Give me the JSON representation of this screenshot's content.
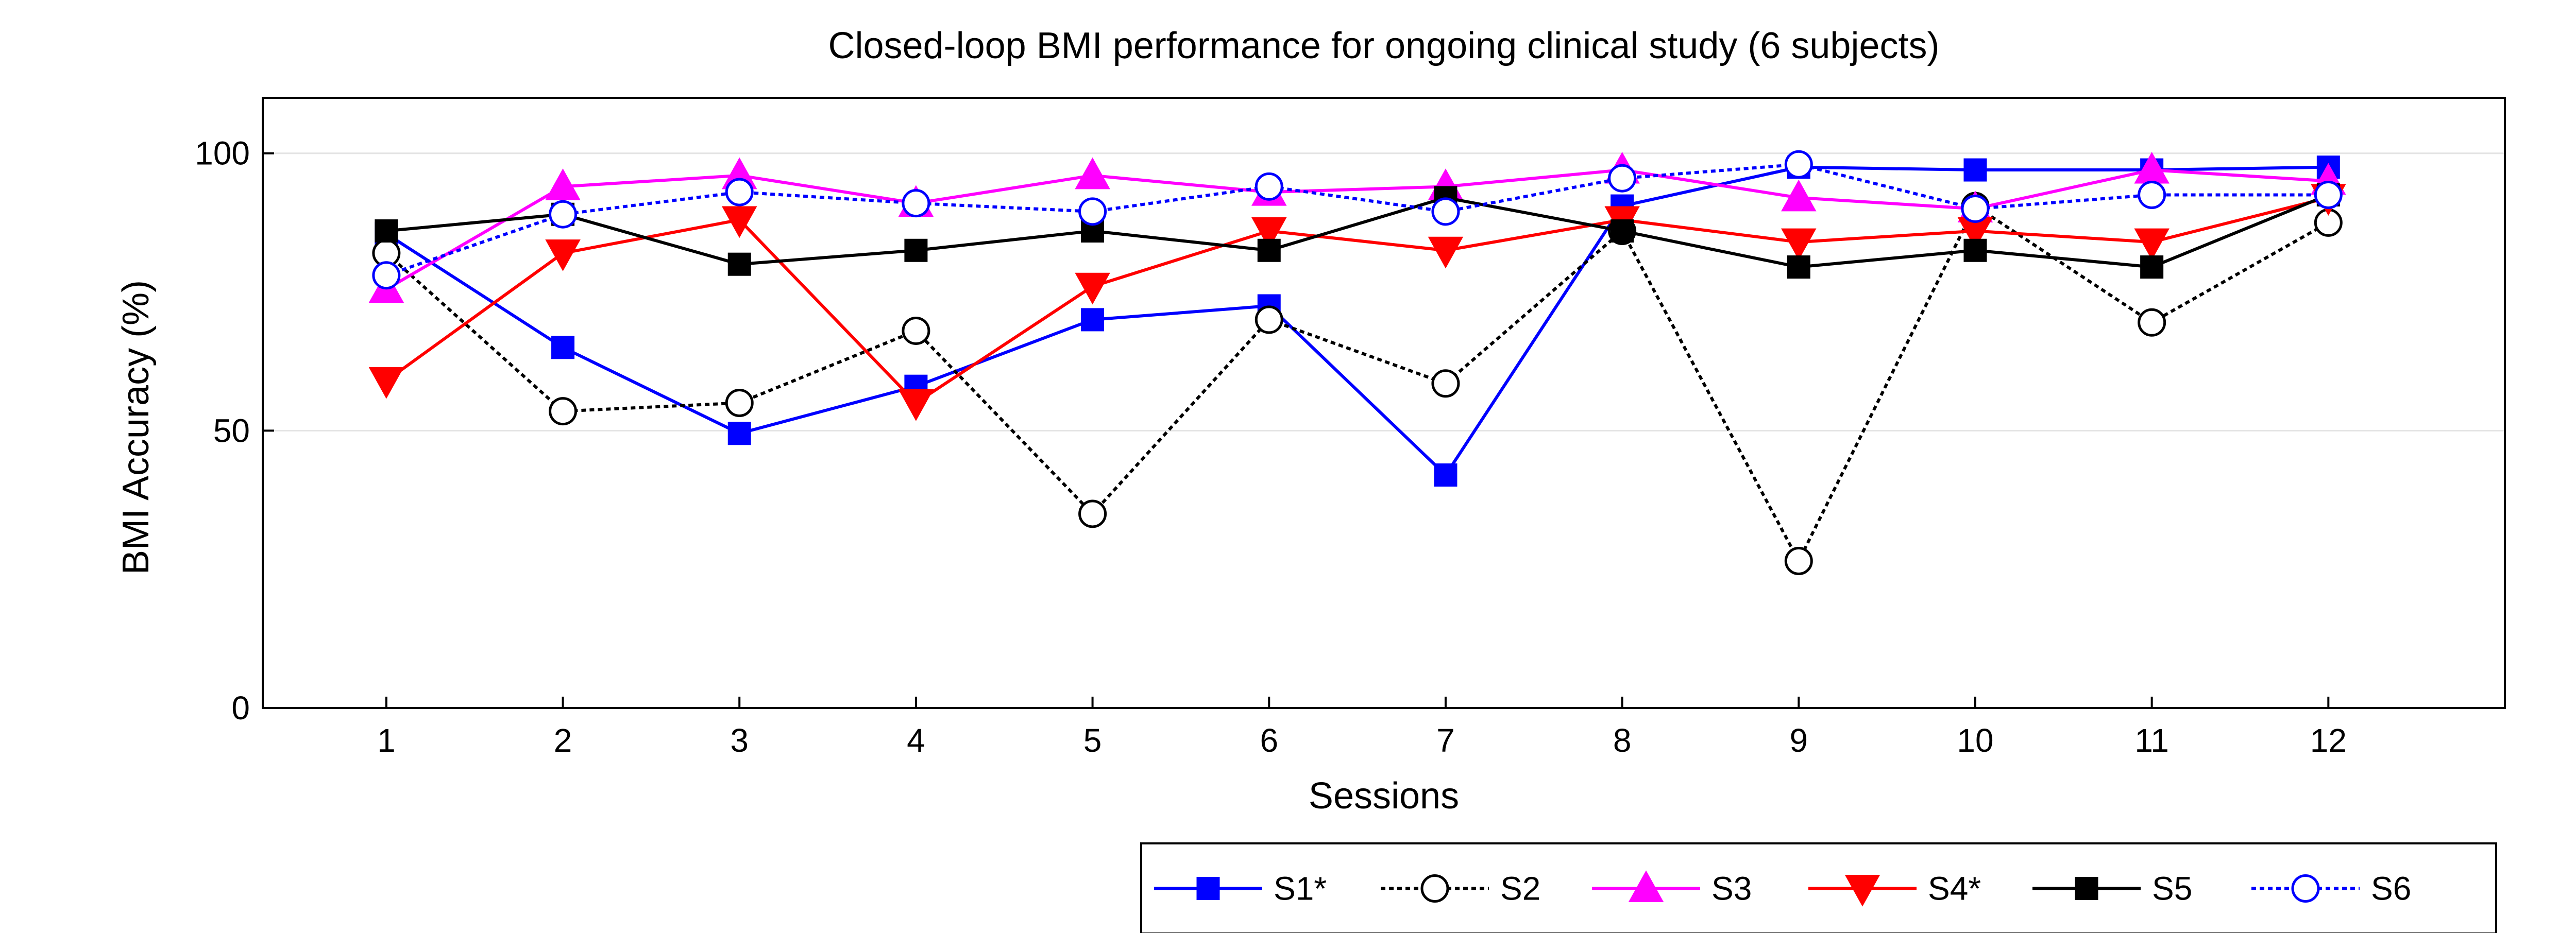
{
  "chart_data": {
    "type": "line",
    "title": "Closed-loop BMI performance for ongoing clinical study (6 subjects)",
    "xlabel": "Sessions",
    "ylabel": "BMI Accuracy (%)",
    "x": [
      1,
      2,
      3,
      4,
      5,
      6,
      7,
      8,
      9,
      10,
      11,
      12
    ],
    "xlim": [
      0.3,
      13.0
    ],
    "ylim": [
      0,
      110
    ],
    "yticks": [
      0,
      50,
      100
    ],
    "xticks": [
      1,
      2,
      3,
      4,
      5,
      6,
      7,
      8,
      9,
      10,
      11,
      12
    ],
    "grid": "horizontal",
    "legend_position": "bottom-right",
    "series": [
      {
        "name": "S1*",
        "color": "#0000ff",
        "dash": "solid",
        "marker": "square",
        "filled": true,
        "values": [
          85.5,
          65,
          49.5,
          58,
          70,
          72.5,
          42,
          90.5,
          97.5,
          97,
          97,
          97.5
        ]
      },
      {
        "name": "S2",
        "color": "#000000",
        "dash": "dotted",
        "marker": "circle",
        "filled": false,
        "values": [
          82,
          53.5,
          55,
          68,
          35,
          70,
          58.5,
          86,
          26.5,
          90.5,
          69.5,
          87.5
        ]
      },
      {
        "name": "S3",
        "color": "#ff00ff",
        "dash": "solid",
        "marker": "triangle-up",
        "filled": true,
        "values": [
          75.5,
          94,
          96,
          91,
          96,
          93,
          94,
          97,
          92,
          90,
          97,
          95
        ]
      },
      {
        "name": "S4*",
        "color": "#ff0000",
        "dash": "solid",
        "marker": "triangle-down",
        "filled": true,
        "values": [
          59,
          82,
          88,
          55,
          76,
          86,
          82.5,
          88,
          84,
          86,
          84,
          92
        ]
      },
      {
        "name": "S5",
        "color": "#000000",
        "dash": "solid",
        "marker": "square",
        "filled": true,
        "values": [
          86,
          89,
          80,
          82.5,
          86,
          82.5,
          92,
          86,
          79.5,
          82.5,
          79.5,
          92.5
        ]
      },
      {
        "name": "S6",
        "color": "#0000ff",
        "dash": "dotted",
        "marker": "circle",
        "filled": false,
        "values": [
          78,
          89,
          93,
          91,
          89.5,
          94,
          89.5,
          95.5,
          98,
          90,
          92.5,
          92.5
        ]
      }
    ]
  }
}
